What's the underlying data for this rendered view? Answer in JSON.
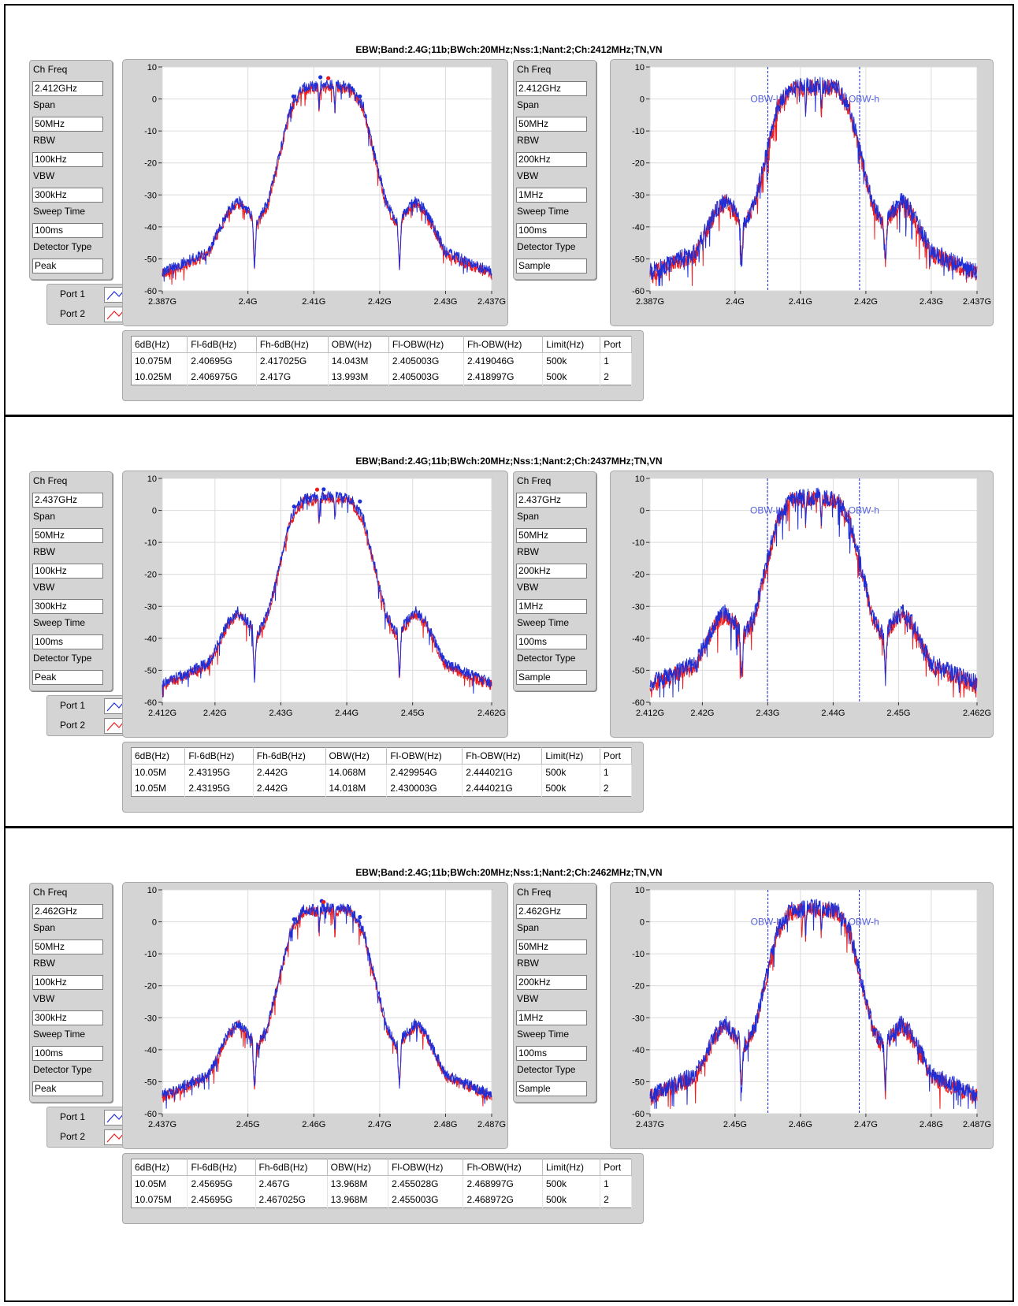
{
  "legend": {
    "port1": "Port 1",
    "port2": "Port 2"
  },
  "colors": {
    "port1": "#1f2fd8",
    "port2": "#ee1c1c",
    "grid": "#dcdcdc"
  },
  "chart_data": [
    {
      "type": "line",
      "title": "EBW;Band:2.4G;11b;BWch:20MHz;Nss:1;Nant:2;Ch:2412MHz;TN,VN",
      "left_settings": {
        "ch_freq": "2.412GHz",
        "span": "50MHz",
        "rbw": "100kHz",
        "vbw": "300kHz",
        "sweep_time": "100ms",
        "detector": "Peak"
      },
      "right_settings": {
        "ch_freq": "2.412GHz",
        "span": "50MHz",
        "rbw": "200kHz",
        "vbw": "1MHz",
        "sweep_time": "100ms",
        "detector": "Sample"
      },
      "labels": {
        "ch_freq": "Ch Freq",
        "span": "Span",
        "rbw": "RBW",
        "vbw": "VBW",
        "sweep_time": "Sweep Time",
        "detector": "Detector Type"
      },
      "center_ghz": 2.412,
      "x_range_ghz": [
        2.387,
        2.437
      ],
      "y_range_db": [
        -60,
        10
      ],
      "y_ticks": [
        "10",
        "0",
        "-10",
        "-20",
        "-30",
        "-40",
        "-50",
        "-60"
      ],
      "x_ticks": [
        {
          "v": 2.387,
          "label": "2.387G"
        },
        {
          "v": 2.4,
          "label": "2.4G"
        },
        {
          "v": 2.41,
          "label": "2.41G"
        },
        {
          "v": 2.42,
          "label": "2.42G"
        },
        {
          "v": 2.43,
          "label": "2.43G"
        },
        {
          "v": 2.437,
          "label": "2.437G"
        }
      ],
      "series": [
        {
          "name": "Port 1",
          "color": "#1f2fd8"
        },
        {
          "name": "Port 2",
          "color": "#ee1c1c"
        }
      ],
      "markers_left": [
        {
          "x": 2.4069,
          "y": 0.8,
          "port": 1
        },
        {
          "x": 2.411,
          "y": 6.8,
          "port": 1
        },
        {
          "x": 2.4122,
          "y": 6.5,
          "port": 2
        },
        {
          "x": 2.417,
          "y": 0.8,
          "port": 1
        }
      ],
      "obw": {
        "low_ghz": 2.405003,
        "high_ghz": 2.419046,
        "low_label": "OBW-l",
        "high_label": "OBW-h"
      },
      "table": {
        "headers": [
          "6dB(Hz)",
          "Fl-6dB(Hz)",
          "Fh-6dB(Hz)",
          "OBW(Hz)",
          "Fl-OBW(Hz)",
          "Fh-OBW(Hz)",
          "Limit(Hz)",
          "Port"
        ],
        "rows": [
          [
            "10.075M",
            "2.40695G",
            "2.417025G",
            "14.043M",
            "2.405003G",
            "2.419046G",
            "500k",
            "1"
          ],
          [
            "10.025M",
            "2.406975G",
            "2.417G",
            "13.993M",
            "2.405003G",
            "2.418997G",
            "500k",
            "2"
          ]
        ]
      }
    },
    {
      "type": "line",
      "title": "EBW;Band:2.4G;11b;BWch:20MHz;Nss:1;Nant:2;Ch:2437MHz;TN,VN",
      "left_settings": {
        "ch_freq": "2.437GHz",
        "span": "50MHz",
        "rbw": "100kHz",
        "vbw": "300kHz",
        "sweep_time": "100ms",
        "detector": "Peak"
      },
      "right_settings": {
        "ch_freq": "2.437GHz",
        "span": "50MHz",
        "rbw": "200kHz",
        "vbw": "1MHz",
        "sweep_time": "100ms",
        "detector": "Sample"
      },
      "labels": {
        "ch_freq": "Ch Freq",
        "span": "Span",
        "rbw": "RBW",
        "vbw": "VBW",
        "sweep_time": "Sweep Time",
        "detector": "Detector Type"
      },
      "center_ghz": 2.437,
      "x_range_ghz": [
        2.412,
        2.462
      ],
      "y_range_db": [
        -60,
        10
      ],
      "y_ticks": [
        "10",
        "0",
        "-10",
        "-20",
        "-30",
        "-40",
        "-50",
        "-60"
      ],
      "x_ticks": [
        {
          "v": 2.412,
          "label": "2.412G"
        },
        {
          "v": 2.42,
          "label": "2.42G"
        },
        {
          "v": 2.43,
          "label": "2.43G"
        },
        {
          "v": 2.44,
          "label": "2.44G"
        },
        {
          "v": 2.45,
          "label": "2.45G"
        },
        {
          "v": 2.462,
          "label": "2.462G"
        }
      ],
      "series": [
        {
          "name": "Port 1",
          "color": "#1f2fd8"
        },
        {
          "name": "Port 2",
          "color": "#ee1c1c"
        }
      ],
      "markers_left": [
        {
          "x": 2.432,
          "y": 1.2,
          "port": 1
        },
        {
          "x": 2.4355,
          "y": 6.5,
          "port": 2
        },
        {
          "x": 2.4365,
          "y": 6.6,
          "port": 1
        },
        {
          "x": 2.442,
          "y": 2.8,
          "port": 1
        }
      ],
      "obw": {
        "low_ghz": 2.429954,
        "high_ghz": 2.444021,
        "low_label": "OBW-l",
        "high_label": "OBW-h"
      },
      "table": {
        "headers": [
          "6dB(Hz)",
          "Fl-6dB(Hz)",
          "Fh-6dB(Hz)",
          "OBW(Hz)",
          "Fl-OBW(Hz)",
          "Fh-OBW(Hz)",
          "Limit(Hz)",
          "Port"
        ],
        "rows": [
          [
            "10.05M",
            "2.43195G",
            "2.442G",
            "14.068M",
            "2.429954G",
            "2.444021G",
            "500k",
            "1"
          ],
          [
            "10.05M",
            "2.43195G",
            "2.442G",
            "14.018M",
            "2.430003G",
            "2.444021G",
            "500k",
            "2"
          ]
        ]
      }
    },
    {
      "type": "line",
      "title": "EBW;Band:2.4G;11b;BWch:20MHz;Nss:1;Nant:2;Ch:2462MHz;TN,VN",
      "left_settings": {
        "ch_freq": "2.462GHz",
        "span": "50MHz",
        "rbw": "100kHz",
        "vbw": "300kHz",
        "sweep_time": "100ms",
        "detector": "Peak"
      },
      "right_settings": {
        "ch_freq": "2.462GHz",
        "span": "50MHz",
        "rbw": "200kHz",
        "vbw": "1MHz",
        "sweep_time": "100ms",
        "detector": "Sample"
      },
      "labels": {
        "ch_freq": "Ch Freq",
        "span": "Span",
        "rbw": "RBW",
        "vbw": "VBW",
        "sweep_time": "Sweep Time",
        "detector": "Detector Type"
      },
      "center_ghz": 2.462,
      "x_range_ghz": [
        2.437,
        2.487
      ],
      "y_range_db": [
        -60,
        10
      ],
      "y_ticks": [
        "10",
        "0",
        "-10",
        "-20",
        "-30",
        "-40",
        "-50",
        "-60"
      ],
      "x_ticks": [
        {
          "v": 2.437,
          "label": "2.437G"
        },
        {
          "v": 2.45,
          "label": "2.45G"
        },
        {
          "v": 2.46,
          "label": "2.46G"
        },
        {
          "v": 2.47,
          "label": "2.47G"
        },
        {
          "v": 2.48,
          "label": "2.48G"
        },
        {
          "v": 2.487,
          "label": "2.487G"
        }
      ],
      "series": [
        {
          "name": "Port 1",
          "color": "#1f2fd8"
        },
        {
          "name": "Port 2",
          "color": "#ee1c1c"
        }
      ],
      "markers_left": [
        {
          "x": 2.457,
          "y": 0.8,
          "port": 1
        },
        {
          "x": 2.4612,
          "y": 6.5,
          "port": 1
        },
        {
          "x": 2.4615,
          "y": 6.2,
          "port": 2
        },
        {
          "x": 2.467,
          "y": 1.5,
          "port": 1
        }
      ],
      "obw": {
        "low_ghz": 2.455028,
        "high_ghz": 2.468997,
        "low_label": "OBW-l",
        "high_label": "OBW-h"
      },
      "table": {
        "headers": [
          "6dB(Hz)",
          "Fl-6dB(Hz)",
          "Fh-6dB(Hz)",
          "OBW(Hz)",
          "Fl-OBW(Hz)",
          "Fh-OBW(Hz)",
          "Limit(Hz)",
          "Port"
        ],
        "rows": [
          [
            "10.05M",
            "2.45695G",
            "2.467G",
            "13.968M",
            "2.455028G",
            "2.468997G",
            "500k",
            "1"
          ],
          [
            "10.075M",
            "2.45695G",
            "2.467025G",
            "13.968M",
            "2.455003G",
            "2.468972G",
            "500k",
            "2"
          ]
        ]
      }
    }
  ]
}
